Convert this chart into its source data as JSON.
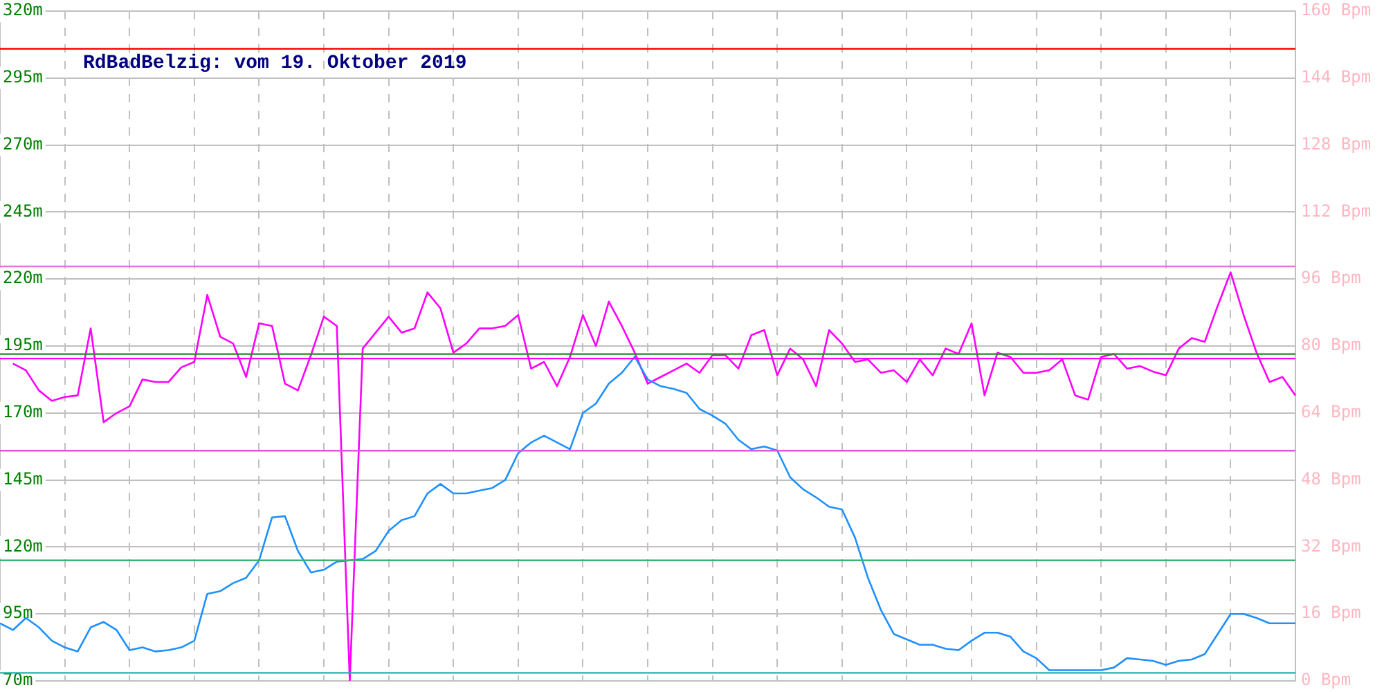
{
  "chart_data": {
    "type": "line",
    "title": "RdBadBelzig: vom 19. Oktober 2019",
    "categories": [
      null,
      null,
      null,
      null,
      null,
      null,
      null,
      null,
      null,
      null,
      null,
      null,
      null,
      null,
      null,
      null,
      null,
      null,
      null,
      null,
      null,
      null,
      null,
      null,
      null,
      null,
      null,
      null,
      null,
      null,
      null,
      null,
      null,
      null,
      null,
      null,
      null,
      null,
      null,
      null,
      null,
      null,
      null,
      null,
      null,
      null,
      null,
      null,
      null,
      null,
      null,
      null,
      null,
      null,
      null,
      null,
      null,
      null,
      null,
      null,
      null,
      null,
      null,
      null,
      null,
      null,
      null,
      null,
      null,
      null,
      null,
      null,
      null,
      null,
      null,
      null,
      null,
      null,
      null,
      null,
      null,
      null,
      null,
      null,
      null,
      null,
      null,
      null,
      null,
      null,
      null,
      null,
      null,
      null,
      null,
      null,
      null,
      null,
      null,
      null,
      null
    ],
    "series": [
      {
        "color": "#1e90ff",
        "values": [
          91.5,
          89,
          93.5,
          90,
          85,
          82.5,
          81,
          90,
          92,
          89,
          81.5,
          82.5,
          81,
          81.5,
          82.5,
          85,
          102.5,
          103.5,
          106.5,
          108.5,
          115,
          131,
          131.5,
          118.5,
          110.5,
          111.5,
          114.5,
          115,
          115.5,
          118.5,
          126,
          130,
          131.5,
          140,
          143.5,
          140,
          140,
          141,
          142,
          145,
          155,
          159,
          161.5,
          159,
          156.5,
          170,
          173.5,
          181,
          185,
          191,
          182.5,
          180,
          179,
          177.5,
          171.5,
          169,
          166,
          160,
          156.5,
          157.5,
          156,
          146,
          141.5,
          138.5,
          135,
          134,
          123.5,
          108.5,
          96.5,
          87.5,
          85.5,
          83.5,
          83.5,
          82,
          81.5,
          85,
          88,
          88,
          86.5,
          81,
          78.5,
          74,
          74,
          74,
          74,
          74,
          75,
          78.5,
          78,
          77.5,
          76,
          77.5,
          78,
          80,
          87.5,
          95,
          95,
          93.5,
          91.5,
          91.5,
          91.5
        ]
      },
      {
        "color": "#ff00ff",
        "axis": "y2",
        "values": [
          null,
          75.8,
          74.2,
          69.4,
          66.9,
          67.8,
          68.2,
          84.2,
          61.8,
          64,
          65.6,
          72,
          71.4,
          71.4,
          74.9,
          76.2,
          92.2,
          82.2,
          80.6,
          72.6,
          85.4,
          84.8,
          71,
          69.4,
          77.8,
          87,
          84.8,
          0,
          79.4,
          83.2,
          87,
          83.2,
          84.2,
          92.8,
          89,
          78.4,
          80.6,
          84.2,
          84.2,
          84.8,
          87.4,
          74.6,
          76.2,
          70.4,
          77.4,
          87.4,
          80,
          90.6,
          84.8,
          78.4,
          71,
          72.6,
          74.2,
          75.8,
          73.6,
          77.8,
          77.8,
          74.6,
          82.6,
          83.8,
          73,
          79.4,
          76.8,
          70.4,
          83.8,
          80.6,
          76.2,
          76.8,
          73.6,
          74.2,
          71.4,
          76.8,
          73,
          79.4,
          78.1,
          85.4,
          68.2,
          78.4,
          77.4,
          73.6,
          73.6,
          74.2,
          76.8,
          68.2,
          67.2,
          77.4,
          78.1,
          74.6,
          75.2,
          73.9,
          73,
          79.4,
          81.9,
          81,
          89.6,
          97.6,
          87.4,
          78.4,
          71.4,
          72.6,
          68.2
        ]
      }
    ],
    "ylim": [
      70,
      320
    ],
    "yticks": [
      {
        "value": 70,
        "label": "70m"
      },
      {
        "value": 95,
        "label": "95m"
      },
      {
        "value": 120,
        "label": "120m"
      },
      {
        "value": 145,
        "label": "145m"
      },
      {
        "value": 170,
        "label": "170m"
      },
      {
        "value": 195,
        "label": "195m"
      },
      {
        "value": 220,
        "label": "220m"
      },
      {
        "value": 245,
        "label": "245m"
      },
      {
        "value": 270,
        "label": "270m"
      },
      {
        "value": 295,
        "label": "295m"
      },
      {
        "value": 320,
        "label": "320m"
      }
    ],
    "y2lim": [
      0,
      160
    ],
    "y2ticks": [
      {
        "value": 0,
        "label": "0 Bpm"
      },
      {
        "value": 16,
        "label": "16 Bpm"
      },
      {
        "value": 32,
        "label": "32 Bpm"
      },
      {
        "value": 48,
        "label": "48 Bpm"
      },
      {
        "value": 64,
        "label": "64 Bpm"
      },
      {
        "value": 80,
        "label": "80 Bpm"
      },
      {
        "value": 96,
        "label": "96 Bpm"
      },
      {
        "value": 112,
        "label": "112 Bpm"
      },
      {
        "value": 128,
        "label": "128 Bpm"
      },
      {
        "value": 144,
        "label": "144 Bpm"
      },
      {
        "value": 160,
        "label": "160 Bpm"
      }
    ],
    "ref_lines": [
      {
        "axis": "y2",
        "value": 151,
        "color": "#ff0000"
      },
      {
        "axis": "y2",
        "value": 99,
        "color": "#dd77dd"
      },
      {
        "axis": "y",
        "value": 192,
        "color": "#228b22"
      },
      {
        "axis": "y2",
        "value": 77,
        "color": "#ff00ff"
      },
      {
        "axis": "y2",
        "value": 55,
        "color": "#dd55dd"
      },
      {
        "axis": "y",
        "value": 115,
        "color": "#3cb371"
      },
      {
        "axis": "y",
        "value": 73,
        "color": "#20b2aa"
      }
    ],
    "grid": true,
    "legend": false,
    "marker": "none",
    "line_style": "solid"
  }
}
